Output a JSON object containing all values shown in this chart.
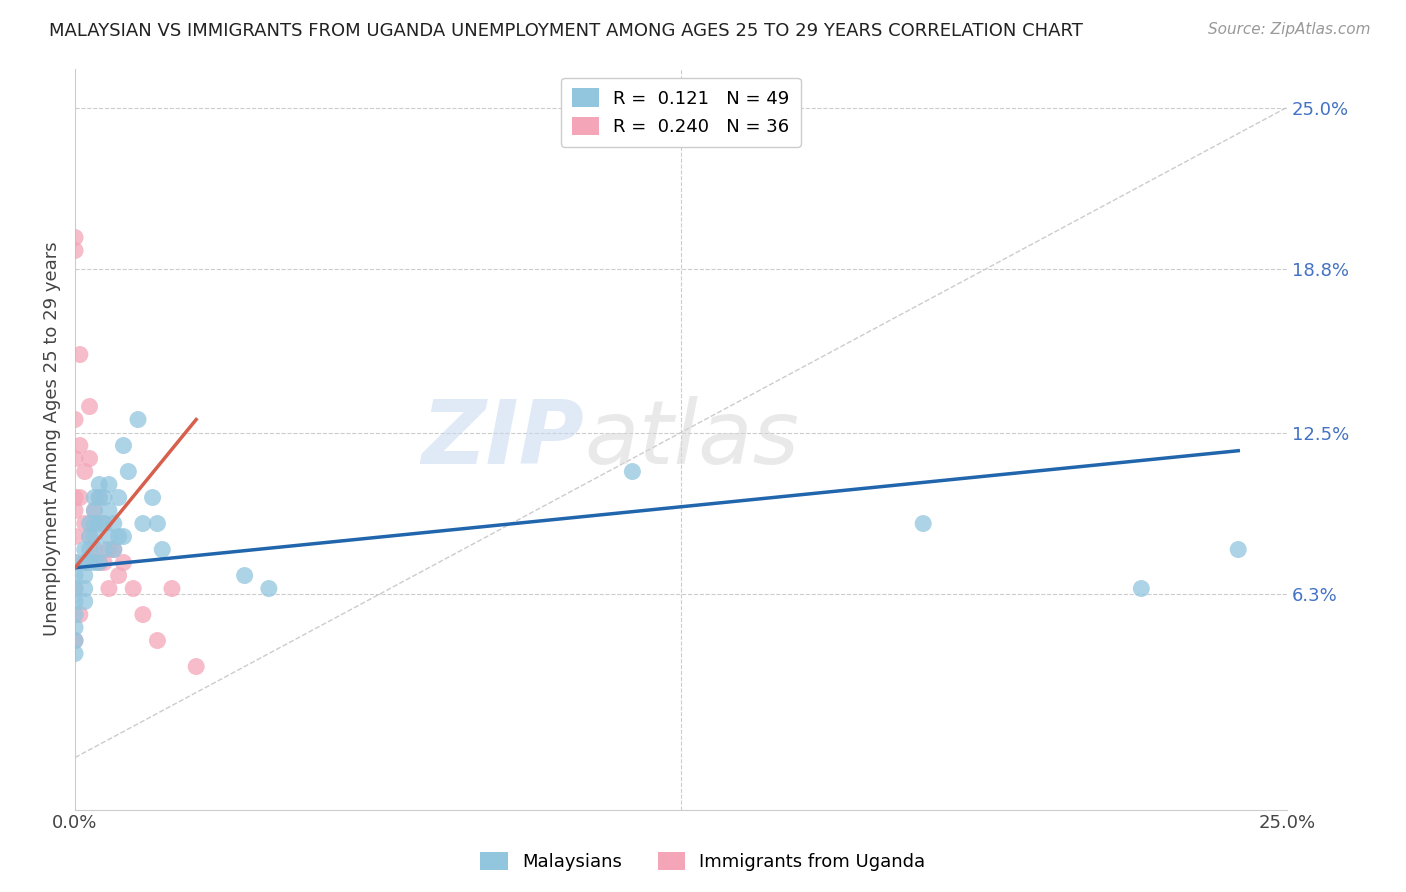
{
  "title": "MALAYSIAN VS IMMIGRANTS FROM UGANDA UNEMPLOYMENT AMONG AGES 25 TO 29 YEARS CORRELATION CHART",
  "source": "Source: ZipAtlas.com",
  "ylabel": "Unemployment Among Ages 25 to 29 years",
  "ytick_labels": [
    "25.0%",
    "18.8%",
    "12.5%",
    "6.3%"
  ],
  "ytick_values": [
    0.25,
    0.188,
    0.125,
    0.063
  ],
  "xlim": [
    0.0,
    0.25
  ],
  "ylim": [
    -0.02,
    0.265
  ],
  "legend_blue_r": "0.121",
  "legend_blue_n": "49",
  "legend_pink_r": "0.240",
  "legend_pink_n": "36",
  "watermark_text": "ZIP",
  "watermark_text2": "atlas",
  "blue_color": "#92c5de",
  "pink_color": "#f4a6b8",
  "blue_line_color": "#2166ac",
  "pink_line_color": "#d6604d",
  "diag_color": "#cccccc",
  "malaysian_x": [
    0.0,
    0.0,
    0.0,
    0.0,
    0.0,
    0.0,
    0.0,
    0.0,
    0.002,
    0.002,
    0.002,
    0.002,
    0.002,
    0.003,
    0.003,
    0.003,
    0.003,
    0.004,
    0.004,
    0.004,
    0.004,
    0.004,
    0.005,
    0.005,
    0.005,
    0.005,
    0.006,
    0.006,
    0.006,
    0.007,
    0.007,
    0.007,
    0.008,
    0.008,
    0.009,
    0.009,
    0.01,
    0.01,
    0.011,
    0.013,
    0.014,
    0.016,
    0.017,
    0.018,
    0.035,
    0.04,
    0.115,
    0.175,
    0.22,
    0.24
  ],
  "malaysian_y": [
    0.075,
    0.07,
    0.065,
    0.06,
    0.055,
    0.05,
    0.045,
    0.04,
    0.08,
    0.075,
    0.07,
    0.065,
    0.06,
    0.09,
    0.085,
    0.08,
    0.075,
    0.1,
    0.095,
    0.09,
    0.085,
    0.075,
    0.105,
    0.1,
    0.09,
    0.075,
    0.1,
    0.09,
    0.08,
    0.105,
    0.095,
    0.085,
    0.09,
    0.08,
    0.1,
    0.085,
    0.12,
    0.085,
    0.11,
    0.13,
    0.09,
    0.1,
    0.09,
    0.08,
    0.07,
    0.065,
    0.11,
    0.09,
    0.065,
    0.08
  ],
  "uganda_x": [
    0.0,
    0.0,
    0.0,
    0.0,
    0.0,
    0.0,
    0.0,
    0.0,
    0.0,
    0.0,
    0.001,
    0.001,
    0.001,
    0.001,
    0.002,
    0.002,
    0.002,
    0.003,
    0.003,
    0.003,
    0.004,
    0.004,
    0.005,
    0.005,
    0.006,
    0.006,
    0.007,
    0.007,
    0.008,
    0.009,
    0.01,
    0.012,
    0.014,
    0.017,
    0.02,
    0.025
  ],
  "uganda_y": [
    0.2,
    0.195,
    0.13,
    0.115,
    0.1,
    0.095,
    0.085,
    0.075,
    0.065,
    0.045,
    0.155,
    0.12,
    0.1,
    0.055,
    0.11,
    0.09,
    0.075,
    0.135,
    0.115,
    0.085,
    0.095,
    0.08,
    0.1,
    0.075,
    0.09,
    0.075,
    0.08,
    0.065,
    0.08,
    0.07,
    0.075,
    0.065,
    0.055,
    0.045,
    0.065,
    0.035
  ],
  "blue_line_x": [
    0.0,
    0.24
  ],
  "blue_line_y": [
    0.073,
    0.118
  ],
  "pink_line_x": [
    0.0,
    0.025
  ],
  "pink_line_y": [
    0.073,
    0.13
  ]
}
